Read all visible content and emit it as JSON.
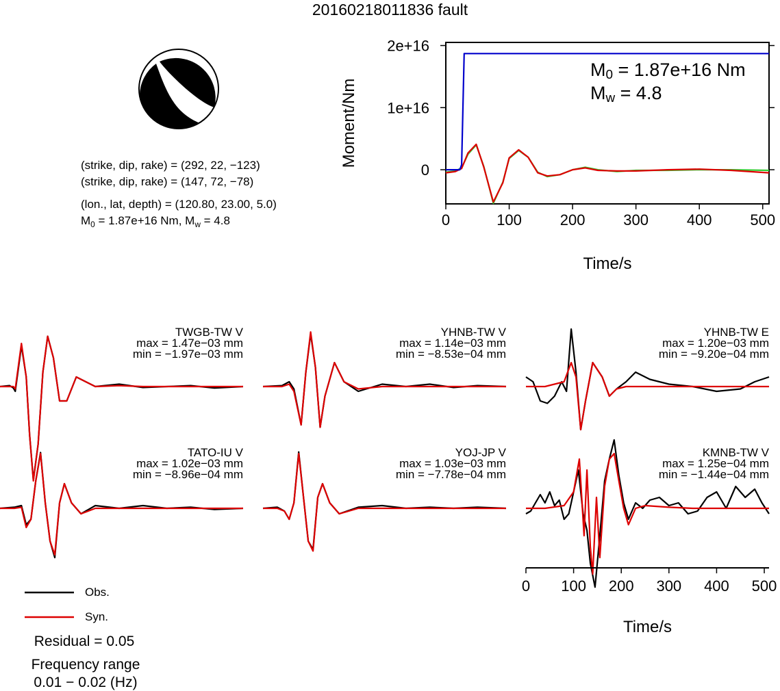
{
  "title": "20160218011836 fault",
  "info": {
    "plane1": "(strike, dip, rake) = (292, 22, −123)",
    "plane2": "(strike, dip, rake) = (147, 72, −78)",
    "location": "(lon., lat, depth) = (120.80, 23.00, 5.0)",
    "m0_prefix": "M",
    "m0_sub": "0",
    "m0_rest": " = 1.87e+16 Nm, M",
    "mw_sub": "w",
    "mw_rest": " = 4.8"
  },
  "moment_labels": {
    "m0_prefix": "M",
    "m0_sub": "0",
    "m0_value": " = 1.87e+16 Nm",
    "mw_prefix": "M",
    "mw_sub": "w",
    "mw_value": " = 4.8"
  },
  "colors": {
    "obs": "#000000",
    "syn": "#dd0000",
    "moment": "#0000cc",
    "moment_rate_green": "#33cc33"
  },
  "legend": {
    "obs": "Obs.",
    "syn": "Syn."
  },
  "residual": "Residual = 0.05",
  "freq_label": "Frequency range",
  "freq_value": "0.01 − 0.02 (Hz)",
  "chart_data": [
    {
      "type": "line",
      "title": "",
      "xlabel": "Time/s",
      "ylabel": "Moment/Nm",
      "xlim": [
        0,
        510
      ],
      "ylim": [
        -5500000000000000.0,
        2.05e+16
      ],
      "xticks": [
        0,
        100,
        200,
        300,
        400,
        500
      ],
      "xtick_labels": [
        "0",
        "100",
        "200",
        "300",
        "400",
        "500"
      ],
      "yticks": [
        0,
        1e+16,
        2e+16
      ],
      "ytick_labels": [
        "0",
        "1e+16",
        "2e+16"
      ],
      "series": [
        {
          "color": "#0000cc",
          "x": [
            0,
            22,
            25,
            27,
            29,
            510
          ],
          "y": [
            0,
            0,
            800000000000000.0,
            1e+16,
            1.87e+16,
            1.87e+16
          ]
        },
        {
          "color": "#33cc33",
          "x": [
            0,
            15,
            25,
            35,
            48,
            60,
            75,
            90,
            100,
            115,
            130,
            145,
            160,
            180,
            200,
            220,
            240,
            270,
            300,
            350,
            400,
            450,
            510
          ],
          "y": [
            -400000000000000.0,
            -200000000000000.0,
            300000000000000.0,
            2500000000000000.0,
            4000000000000000.0,
            500000000000000.0,
            -5400000000000000.0,
            -2000000000000000.0,
            1800000000000000.0,
            3100000000000000.0,
            2000000000000000.0,
            -400000000000000.0,
            -1100000000000000.0,
            -800000000000000.0,
            0.0,
            400000000000000.0,
            0.0,
            -300000000000000.0,
            -100000000000000.0,
            -100000000000000.0,
            0.0,
            0.0,
            -100000000000000.0
          ]
        },
        {
          "color": "#dd0000",
          "x": [
            0,
            15,
            25,
            35,
            48,
            60,
            75,
            90,
            100,
            115,
            130,
            145,
            160,
            180,
            200,
            220,
            240,
            270,
            300,
            350,
            400,
            450,
            510
          ],
          "y": [
            -500000000000000.0,
            -300000000000000.0,
            200000000000000.0,
            2700000000000000.0,
            4100000000000000.0,
            400000000000000.0,
            -5200000000000000.0,
            -2100000000000000.0,
            1900000000000000.0,
            3200000000000000.0,
            2000000000000000.0,
            -500000000000000.0,
            -1000000000000000.0,
            -800000000000000.0,
            0.0,
            300000000000000.0,
            -100000000000000.0,
            -200000000000000.0,
            -200000000000000.0,
            0.0,
            100000000000000.0,
            -100000000000000.0,
            -500000000000000.0
          ]
        }
      ]
    },
    {
      "type": "line",
      "title": "",
      "xlabel": "Time/s",
      "xlim": [
        0,
        510
      ],
      "xticks": [
        0,
        100,
        200,
        300,
        400,
        500
      ],
      "xtick_labels": [
        "0",
        "100",
        "200",
        "300",
        "400",
        "500"
      ],
      "panels": [
        {
          "station": "TWGB-TW V",
          "max": "max = 1.47e−03 mm",
          "min": "min = −1.97e−03 mm",
          "obs": {
            "x": [
              0,
              20,
              28,
              32,
              45,
              55,
              62,
              70,
              80,
              90,
              100,
              112,
              125,
              140,
              160,
              200,
              250,
              300,
              350,
              400,
              450,
              510
            ],
            "y": [
              0,
              0.02,
              -0.03,
              -0.1,
              0.85,
              0.2,
              -1.0,
              -1.95,
              -1.2,
              0.3,
              1.05,
              0.6,
              -0.3,
              -0.3,
              0.2,
              0.0,
              0.05,
              -0.02,
              0.0,
              0.02,
              -0.03,
              0.0
            ]
          },
          "syn": {
            "x": [
              0,
              20,
              28,
              32,
              45,
              55,
              62,
              70,
              80,
              90,
              100,
              112,
              125,
              140,
              160,
              200,
              250,
              300,
              350,
              400,
              450,
              510
            ],
            "y": [
              0,
              0.0,
              0.0,
              -0.05,
              0.9,
              0.2,
              -1.0,
              -1.97,
              -1.2,
              0.3,
              1.05,
              0.6,
              -0.3,
              -0.3,
              0.2,
              0.0,
              0.02,
              0.0,
              0.0,
              0.0,
              0.0,
              0.0
            ]
          }
        },
        {
          "station": "YHNB-TW V",
          "max": "max = 1.14e−03 mm",
          "min": "min = −8.53e−04 mm",
          "obs": {
            "x": [
              0,
              40,
              55,
              65,
              80,
              90,
              100,
              110,
              120,
              130,
              150,
              170,
              200,
              250,
              300,
              350,
              400,
              450,
              510
            ],
            "y": [
              0,
              0.02,
              0.1,
              -0.05,
              -0.8,
              0.3,
              1.1,
              0.4,
              -0.85,
              -0.2,
              0.5,
              0.1,
              -0.1,
              0.05,
              0.0,
              0.05,
              -0.02,
              0.02,
              0.0
            ]
          },
          "syn": {
            "x": [
              0,
              40,
              55,
              65,
              80,
              90,
              100,
              110,
              120,
              130,
              150,
              170,
              200,
              250,
              300,
              350,
              400,
              450,
              510
            ],
            "y": [
              0,
              0.0,
              0.05,
              -0.1,
              -0.8,
              0.3,
              1.14,
              0.4,
              -0.85,
              -0.2,
              0.5,
              0.1,
              -0.05,
              0.0,
              0.0,
              0.0,
              0.0,
              0.0,
              0.0
            ]
          }
        },
        {
          "station": "YHNB-TW E",
          "max": "max = 1.20e−03 mm",
          "min": "min = −9.20e−04 mm",
          "obs": {
            "x": [
              0,
              15,
              30,
              45,
              60,
              75,
              85,
              95,
              105,
              115,
              125,
              140,
              160,
              175,
              190,
              210,
              230,
              260,
              300,
              350,
              400,
              450,
              480,
              510
            ],
            "y": [
              0.2,
              0.1,
              -0.3,
              -0.35,
              -0.2,
              0.1,
              -0.1,
              1.2,
              0.3,
              -0.9,
              -0.3,
              0.5,
              0.2,
              -0.2,
              -0.05,
              0.1,
              0.3,
              0.15,
              0.05,
              0.0,
              -0.1,
              -0.05,
              0.1,
              0.2
            ]
          },
          "syn": {
            "x": [
              0,
              40,
              80,
              95,
              105,
              115,
              125,
              140,
              160,
              175,
              190,
              210,
              240,
              300,
              400,
              510
            ],
            "y": [
              0,
              0.0,
              0.1,
              0.5,
              0.2,
              -0.9,
              -0.3,
              0.5,
              0.2,
              -0.2,
              -0.05,
              0.0,
              0.0,
              0.0,
              0.0,
              0.0
            ]
          }
        },
        {
          "station": "TATO-IU V",
          "max": "max = 1.02e−03 mm",
          "min": "min = −8.96e−04 mm",
          "obs": {
            "x": [
              0,
              30,
              45,
              55,
              65,
              75,
              85,
              95,
              105,
              115,
              125,
              135,
              150,
              170,
              200,
              250,
              300,
              350,
              400,
              450,
              510
            ],
            "y": [
              0,
              0.02,
              0.05,
              -0.3,
              -0.2,
              0.5,
              1.02,
              0.1,
              -0.6,
              -0.9,
              0.1,
              0.45,
              0.1,
              -0.1,
              0.05,
              0.0,
              0.05,
              0.0,
              0.02,
              -0.02,
              0.0
            ]
          },
          "syn": {
            "x": [
              0,
              30,
              45,
              55,
              65,
              75,
              85,
              95,
              105,
              115,
              125,
              135,
              150,
              170,
              200,
              250,
              300,
              350,
              400,
              450,
              510
            ],
            "y": [
              0,
              0.0,
              0.02,
              -0.35,
              -0.2,
              0.5,
              1.0,
              0.1,
              -0.6,
              -0.85,
              0.1,
              0.45,
              0.1,
              -0.1,
              0.0,
              0.0,
              0.0,
              0.0,
              0.0,
              0.0,
              0.0
            ]
          }
        },
        {
          "station": "YOJ-JP V",
          "max": "max = 1.03e−03 mm",
          "min": "min = −7.78e−04 mm",
          "obs": {
            "x": [
              0,
              30,
              45,
              55,
              65,
              75,
              85,
              95,
              105,
              115,
              125,
              140,
              160,
              200,
              250,
              300,
              350,
              400,
              450,
              510
            ],
            "y": [
              0,
              0.02,
              -0.05,
              -0.2,
              0.1,
              1.03,
              0.2,
              -0.6,
              -0.75,
              0.2,
              0.45,
              0.1,
              -0.1,
              0.02,
              0.05,
              0.0,
              0.02,
              0.0,
              0.02,
              0.0
            ]
          },
          "syn": {
            "x": [
              0,
              30,
              45,
              55,
              65,
              75,
              85,
              95,
              105,
              115,
              125,
              140,
              160,
              200,
              250,
              300,
              350,
              400,
              450,
              510
            ],
            "y": [
              0,
              0.0,
              -0.05,
              -0.2,
              0.1,
              1.0,
              0.2,
              -0.6,
              -0.78,
              0.2,
              0.45,
              0.1,
              -0.1,
              0.0,
              0.0,
              0.0,
              0.0,
              0.0,
              0.0,
              0.0
            ]
          }
        },
        {
          "station": "KMNB-TW V",
          "max": "max = 1.25e−04 mm",
          "min": "min = −1.44e−04 mm",
          "obs": {
            "x": [
              0,
              10,
              20,
              30,
              40,
              50,
              60,
              70,
              80,
              90,
              100,
              110,
              120,
              128,
              135,
              145,
              155,
              165,
              175,
              185,
              195,
              205,
              215,
              230,
              245,
              260,
              280,
              300,
              320,
              340,
              360,
              380,
              400,
              420,
              440,
              460,
              480,
              495,
              510
            ],
            "y": [
              -0.1,
              -0.05,
              0.1,
              0.25,
              0.1,
              0.3,
              0.05,
              0.15,
              -0.2,
              -0.1,
              0.3,
              0.7,
              -0.1,
              -0.4,
              -1.0,
              -1.44,
              -0.5,
              0.5,
              0.9,
              1.25,
              0.6,
              0.1,
              -0.2,
              0.1,
              0.0,
              0.15,
              0.2,
              0.05,
              0.1,
              -0.1,
              -0.05,
              0.2,
              0.3,
              0.0,
              0.4,
              0.2,
              0.35,
              0.1,
              -0.1
            ]
          },
          "syn": {
            "x": [
              0,
              40,
              80,
              100,
              112,
              122,
              128,
              135,
              140,
              148,
              155,
              165,
              175,
              185,
              195,
              205,
              215,
              230,
              250,
              300,
              350,
              400,
              450,
              510
            ],
            "y": [
              0,
              0.0,
              0.05,
              0.3,
              0.9,
              -0.5,
              0.7,
              -0.7,
              -1.2,
              0.2,
              -0.9,
              0.4,
              0.9,
              1.0,
              0.5,
              0.0,
              -0.3,
              0.0,
              0.05,
              0.02,
              0.0,
              0.0,
              0.0,
              0.0
            ]
          }
        }
      ]
    }
  ]
}
